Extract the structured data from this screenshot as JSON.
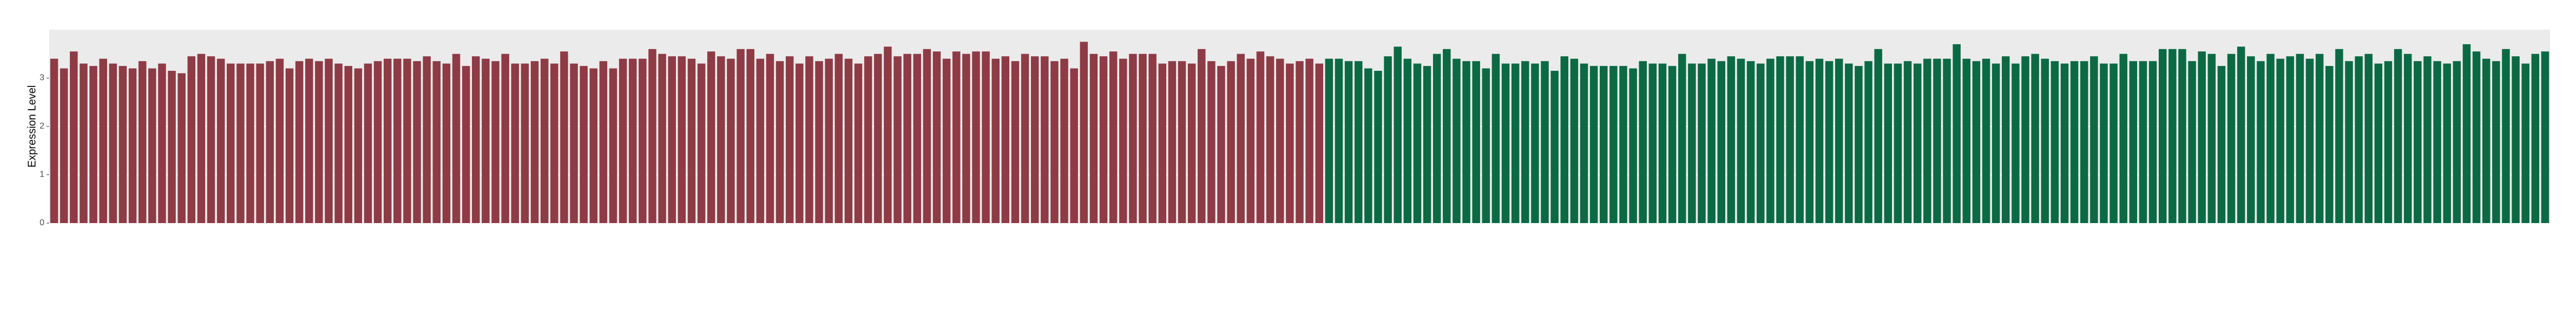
{
  "chart_data": {
    "type": "bar",
    "y_label": "Expression Level",
    "categories": [
      null,
      null,
      null,
      null,
      null,
      null,
      null,
      null,
      null,
      null,
      null,
      null,
      null,
      null,
      null,
      null,
      null,
      null,
      null,
      null,
      null,
      null,
      null,
      null,
      null,
      null,
      null,
      null,
      null,
      null,
      null,
      null,
      null,
      null,
      null,
      null,
      null,
      null,
      null,
      null,
      null,
      null,
      null,
      null,
      null,
      null,
      null,
      null,
      null,
      null,
      null,
      null,
      null,
      null,
      null,
      null,
      null,
      null,
      null,
      null,
      null,
      null,
      null,
      null,
      null,
      null,
      null,
      null,
      null,
      null,
      null,
      null,
      null,
      null,
      null,
      null,
      null,
      null,
      null,
      null,
      null,
      null,
      null,
      null,
      null,
      null,
      null,
      null,
      null,
      null,
      null,
      null,
      null,
      null,
      null,
      null,
      null,
      null,
      null,
      null,
      null,
      null,
      null,
      null,
      null,
      null,
      null,
      null,
      null,
      null,
      null,
      null,
      null,
      null,
      null,
      null,
      null,
      null,
      null,
      null,
      null,
      null,
      null,
      null,
      null,
      null,
      null,
      null,
      null,
      null,
      null,
      null,
      null,
      null,
      null,
      null,
      null,
      null,
      null,
      null,
      null,
      null,
      null,
      null,
      null,
      null,
      null,
      null,
      null,
      null,
      null,
      null,
      null,
      null,
      null,
      null,
      null,
      null,
      null,
      null,
      null,
      null,
      null,
      null,
      null,
      null,
      null,
      null,
      null,
      null,
      null,
      null,
      null,
      null,
      null,
      null,
      null,
      null,
      null,
      null,
      null,
      null,
      null,
      null,
      null,
      null,
      null,
      null,
      null,
      null,
      null,
      null,
      null,
      null,
      null,
      null,
      null,
      null,
      null,
      null,
      null,
      null,
      null,
      null,
      null,
      null,
      null,
      null,
      null,
      null,
      null,
      null,
      null,
      null,
      null,
      null,
      null,
      null,
      null,
      null,
      null,
      null,
      null,
      null,
      null,
      null,
      null,
      null,
      null,
      null,
      null,
      null,
      null,
      null,
      null,
      null,
      null,
      null,
      null,
      null,
      null,
      null,
      null,
      null,
      null,
      null,
      null,
      null,
      null,
      null,
      null,
      null,
      null,
      null,
      null
    ],
    "series": [
      {
        "color": "#8e3b46",
        "values": [
          3.4,
          3.2,
          3.55,
          3.3,
          3.25,
          3.4,
          3.3,
          3.25,
          3.2,
          3.35,
          3.2,
          3.3,
          3.15,
          3.1,
          3.45,
          3.5,
          3.45,
          3.4,
          3.3,
          3.3,
          3.3,
          3.3,
          3.35,
          3.4,
          3.2,
          3.35,
          3.4,
          3.35,
          3.4,
          3.3,
          3.25,
          3.2,
          3.3,
          3.35,
          3.4,
          3.4,
          3.4,
          3.35,
          3.45,
          3.35,
          3.3,
          3.5,
          3.25,
          3.45,
          3.4,
          3.35,
          3.5,
          3.3,
          3.3,
          3.35,
          3.4,
          3.3,
          3.55,
          3.3,
          3.25,
          3.2,
          3.35,
          3.2,
          3.4,
          3.4,
          3.4,
          3.6,
          3.5,
          3.45,
          3.45,
          3.4,
          3.3,
          3.55,
          3.45,
          3.4,
          3.6,
          3.6,
          3.4,
          3.5,
          3.35,
          3.45,
          3.3,
          3.45,
          3.35,
          3.4,
          3.5,
          3.4,
          3.3,
          3.45,
          3.5,
          3.65,
          3.45,
          3.5,
          3.5,
          3.6,
          3.55,
          3.4,
          3.55,
          3.5,
          3.55,
          3.55,
          3.4,
          3.45,
          3.35,
          3.5,
          3.45,
          3.45,
          3.35,
          3.4,
          3.2,
          3.75,
          3.5,
          3.45,
          3.55,
          3.4,
          3.5,
          3.5,
          3.5,
          3.3,
          3.35,
          3.35,
          3.3,
          3.6,
          3.35,
          3.25,
          3.35,
          3.5,
          3.4,
          3.55,
          3.45,
          3.4,
          3.3,
          3.35,
          3.4,
          3.3,
          null,
          null,
          null,
          null,
          null,
          null,
          null,
          null,
          null,
          null,
          null,
          null,
          null,
          null,
          null,
          null,
          null,
          null,
          null,
          null,
          null,
          null,
          null,
          null,
          null,
          null,
          null,
          null,
          null,
          null,
          null,
          null,
          null,
          null,
          null,
          null,
          null,
          null,
          null,
          null,
          null,
          null,
          null,
          null,
          null,
          null,
          null,
          null,
          null,
          null,
          null,
          null,
          null,
          null,
          null,
          null,
          null,
          null,
          null,
          null,
          null,
          null,
          null,
          null,
          null,
          null,
          null,
          null,
          null,
          null,
          null,
          null,
          null,
          null,
          null,
          null,
          null,
          null,
          null,
          null,
          null,
          null,
          null,
          null,
          null,
          null,
          null,
          null,
          null,
          null,
          null,
          null,
          null,
          null,
          null,
          null,
          null,
          null,
          null,
          null,
          null,
          null,
          null,
          null,
          null,
          null,
          null,
          null,
          null,
          null,
          null,
          null,
          null,
          null,
          null,
          null,
          null,
          null,
          null,
          null,
          null,
          null,
          null,
          null,
          null
        ]
      },
      {
        "color": "#0b6a44",
        "values": [
          null,
          null,
          null,
          null,
          null,
          null,
          null,
          null,
          null,
          null,
          null,
          null,
          null,
          null,
          null,
          null,
          null,
          null,
          null,
          null,
          null,
          null,
          null,
          null,
          null,
          null,
          null,
          null,
          null,
          null,
          null,
          null,
          null,
          null,
          null,
          null,
          null,
          null,
          null,
          null,
          null,
          null,
          null,
          null,
          null,
          null,
          null,
          null,
          null,
          null,
          null,
          null,
          null,
          null,
          null,
          null,
          null,
          null,
          null,
          null,
          null,
          null,
          null,
          null,
          null,
          null,
          null,
          null,
          null,
          null,
          null,
          null,
          null,
          null,
          null,
          null,
          null,
          null,
          null,
          null,
          null,
          null,
          null,
          null,
          null,
          null,
          null,
          null,
          null,
          null,
          null,
          null,
          null,
          null,
          null,
          null,
          null,
          null,
          null,
          null,
          null,
          null,
          null,
          null,
          null,
          null,
          null,
          null,
          null,
          null,
          null,
          null,
          null,
          null,
          null,
          null,
          null,
          null,
          null,
          null,
          null,
          null,
          null,
          null,
          null,
          null,
          null,
          null,
          null,
          null,
          3.4,
          3.4,
          3.35,
          3.35,
          3.2,
          3.15,
          3.45,
          3.65,
          3.4,
          3.3,
          3.25,
          3.5,
          3.6,
          3.4,
          3.35,
          3.35,
          3.2,
          3.5,
          3.3,
          3.3,
          3.35,
          3.3,
          3.35,
          3.15,
          3.45,
          3.4,
          3.3,
          3.25,
          3.25,
          3.25,
          3.25,
          3.2,
          3.35,
          3.3,
          3.3,
          3.25,
          3.5,
          3.3,
          3.3,
          3.4,
          3.35,
          3.45,
          3.4,
          3.35,
          3.3,
          3.4,
          3.45,
          3.45,
          3.45,
          3.35,
          3.4,
          3.35,
          3.4,
          3.3,
          3.25,
          3.35,
          3.6,
          3.3,
          3.3,
          3.35,
          3.3,
          3.4,
          3.4,
          3.4,
          3.7,
          3.4,
          3.35,
          3.4,
          3.3,
          3.45,
          3.3,
          3.45,
          3.5,
          3.4,
          3.35,
          3.3,
          3.35,
          3.35,
          3.45,
          3.3,
          3.3,
          3.5,
          3.35,
          3.35,
          3.35,
          3.6,
          3.6,
          3.6,
          3.35,
          3.55,
          3.5,
          3.25,
          3.5,
          3.65,
          3.45,
          3.35,
          3.5,
          3.4,
          3.45,
          3.5,
          3.4,
          3.5,
          3.25,
          3.6,
          3.35,
          3.45,
          3.5,
          3.3,
          3.35,
          3.6,
          3.5,
          3.35,
          3.45,
          3.35,
          3.3,
          3.35,
          3.7,
          3.55,
          3.4,
          3.35,
          3.6,
          3.45,
          3.3,
          3.5,
          3.55
        ]
      }
    ],
    "ylim": [
      0,
      4
    ],
    "yticks": [
      0,
      1,
      2,
      3
    ],
    "grid": true
  }
}
